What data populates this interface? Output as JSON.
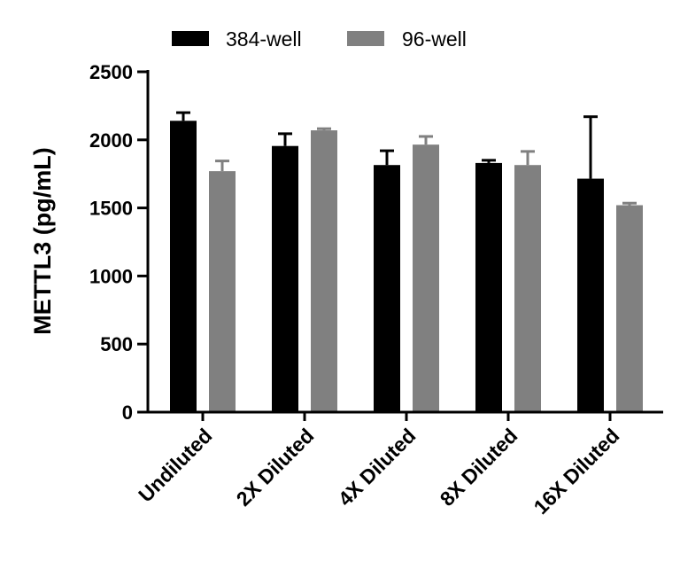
{
  "chart_data": {
    "type": "bar",
    "title": "",
    "xlabel": "",
    "ylabel": "METTL3 (pg/mL)",
    "ylim": [
      0,
      2500
    ],
    "yticks": [
      0,
      500,
      1000,
      1500,
      2000,
      2500
    ],
    "ytick_labels": [
      "0",
      "500",
      "1000",
      "1500",
      "2000",
      "2500"
    ],
    "categories": [
      "Undiluted",
      "2X Diluted",
      "4X Diluted",
      "8X Diluted",
      "16X Diluted"
    ],
    "series": [
      {
        "name": "384-well",
        "color": "#000000",
        "values": [
          2140,
          1955,
          1815,
          1830,
          1715
        ],
        "errors": [
          60,
          90,
          105,
          20,
          455
        ]
      },
      {
        "name": "96-well",
        "color": "#808080",
        "values": [
          1770,
          2070,
          1965,
          1815,
          1520
        ],
        "errors": [
          75,
          12,
          60,
          100,
          15
        ]
      }
    ],
    "legend_position": "top",
    "grid": false
  }
}
